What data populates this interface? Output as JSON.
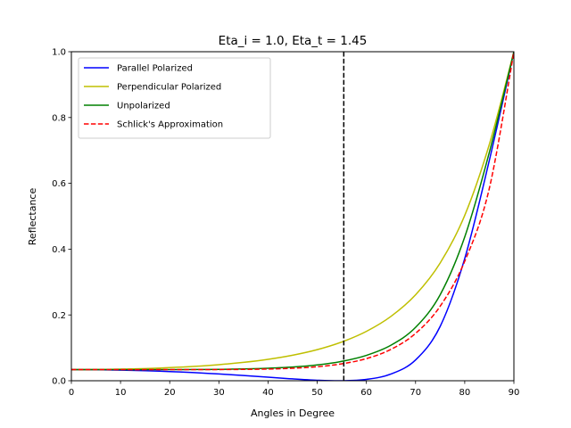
{
  "chart_data": {
    "type": "line",
    "title": "Eta_i = 1.0, Eta_t = 1.45",
    "xlabel": "Angles in Degree",
    "ylabel": "Reflectance",
    "xlim": [
      0,
      90
    ],
    "ylim": [
      0,
      1
    ],
    "xticks": [
      "0",
      "10",
      "20",
      "30",
      "40",
      "50",
      "60",
      "70",
      "80",
      "90"
    ],
    "yticks": [
      "0.0",
      "0.2",
      "0.4",
      "0.6",
      "0.8",
      "1.0"
    ],
    "grid": false,
    "legend_position": "upper-left",
    "eta_i": 1.0,
    "eta_t": 1.45,
    "vline": {
      "x": 55.4,
      "style": "dashed",
      "color": "#000000"
    },
    "x": [
      0,
      5,
      10,
      15,
      20,
      25,
      30,
      35,
      40,
      45,
      50,
      55,
      60,
      65,
      70,
      75,
      80,
      85,
      90
    ],
    "series": [
      {
        "name": "Parallel Polarized",
        "color": "#0000ff",
        "dash": "solid",
        "values": [
          0.0337,
          0.0334,
          0.0323,
          0.0304,
          0.0279,
          0.0246,
          0.0206,
          0.0159,
          0.0108,
          0.0056,
          0.0015,
          0.0,
          0.0042,
          0.0204,
          0.0632,
          0.165,
          0.3715,
          0.6696,
          1.0
        ]
      },
      {
        "name": "Perpendicular Polarized",
        "color": "#bfbf00",
        "dash": "solid",
        "values": [
          0.0337,
          0.0341,
          0.0351,
          0.037,
          0.0398,
          0.0436,
          0.0488,
          0.0558,
          0.0651,
          0.0776,
          0.0945,
          0.1178,
          0.1501,
          0.1957,
          0.2612,
          0.3577,
          0.5026,
          0.7182,
          1.0
        ]
      },
      {
        "name": "Unpolarized",
        "color": "#008000",
        "dash": "solid",
        "values": [
          0.0337,
          0.0337,
          0.0337,
          0.0337,
          0.0338,
          0.0341,
          0.0347,
          0.0358,
          0.038,
          0.0416,
          0.048,
          0.0589,
          0.0771,
          0.108,
          0.1622,
          0.2613,
          0.4371,
          0.6939,
          1.0
        ]
      },
      {
        "name": "Schlick's Approximation",
        "color": "#ff0000",
        "dash": "dashed",
        "values": [
          0.0337,
          0.0337,
          0.0337,
          0.0337,
          0.0338,
          0.0338,
          0.034,
          0.0345,
          0.0356,
          0.038,
          0.0426,
          0.0515,
          0.0673,
          0.0954,
          0.1439,
          0.2264,
          0.3632,
          0.5845,
          1.0
        ]
      }
    ]
  }
}
